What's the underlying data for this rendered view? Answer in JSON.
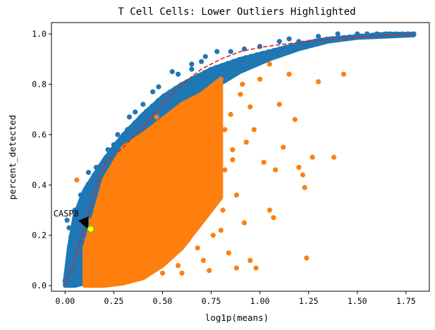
{
  "chart_data": {
    "type": "scatter",
    "title": "T Cell Cells: Lower Outliers Highlighted",
    "xlabel": "log1p(means)",
    "ylabel": "percent_detected",
    "xlim": [
      -0.07,
      1.87
    ],
    "ylim": [
      -0.022,
      1.045
    ],
    "xticks": [
      "0.00",
      "0.25",
      "0.50",
      "0.75",
      "1.00",
      "1.25",
      "1.50",
      "1.75"
    ],
    "yticks": [
      "0.0",
      "0.2",
      "0.4",
      "0.6",
      "0.8",
      "1.0"
    ],
    "grid": false,
    "legend": "none",
    "colors": {
      "all_genes": "#1f77b4",
      "lower_outliers": "#ff7f0e",
      "fit_curve": "#d62728",
      "highlight": "#ffff00",
      "highlight_edge": "#7ab800",
      "arrow": "#000000"
    },
    "series": [
      {
        "key": "all_genes",
        "marker": "dot",
        "envelope_x": [
          0.0,
          0.02,
          0.05,
          0.1,
          0.15,
          0.2,
          0.3,
          0.4,
          0.5,
          0.6,
          0.75,
          0.9,
          1.05,
          1.2,
          1.35,
          1.5,
          1.65,
          1.79
        ],
        "envelope_upper": [
          0.02,
          0.15,
          0.28,
          0.38,
          0.44,
          0.5,
          0.6,
          0.68,
          0.75,
          0.8,
          0.86,
          0.9,
          0.93,
          0.96,
          0.98,
          0.99,
          1.0,
          1.0
        ],
        "envelope_lower": [
          0.0,
          0.0,
          0.0,
          0.01,
          0.05,
          0.12,
          0.3,
          0.46,
          0.6,
          0.68,
          0.78,
          0.85,
          0.9,
          0.94,
          0.97,
          0.985,
          0.99,
          0.995
        ],
        "points": [
          [
            0.05,
            0.3
          ],
          [
            0.08,
            0.36
          ],
          [
            0.1,
            0.34
          ],
          [
            0.12,
            0.45
          ],
          [
            0.14,
            0.39
          ],
          [
            0.17,
            0.43
          ],
          [
            0.22,
            0.54
          ],
          [
            0.27,
            0.6
          ],
          [
            0.32,
            0.62
          ],
          [
            0.36,
            0.69
          ],
          [
            0.4,
            0.72
          ],
          [
            0.48,
            0.79
          ],
          [
            0.55,
            0.85
          ],
          [
            0.65,
            0.88
          ],
          [
            0.72,
            0.91
          ],
          [
            0.78,
            0.93
          ],
          [
            0.65,
            0.86
          ],
          [
            1.0,
            0.95
          ],
          [
            1.1,
            0.97
          ],
          [
            1.15,
            0.98
          ],
          [
            1.3,
            0.99
          ],
          [
            1.4,
            1.0
          ],
          [
            1.5,
            1.0
          ],
          [
            1.55,
            1.0
          ],
          [
            1.6,
            1.0
          ],
          [
            1.65,
            1.0
          ],
          [
            1.7,
            0.995
          ],
          [
            1.79,
            1.0
          ],
          [
            0.01,
            0.26
          ],
          [
            0.02,
            0.23
          ],
          [
            0.03,
            0.18
          ],
          [
            0.06,
            0.23
          ],
          [
            0.09,
            0.28
          ],
          [
            0.16,
            0.47
          ],
          [
            0.25,
            0.56
          ],
          [
            0.33,
            0.67
          ],
          [
            0.45,
            0.77
          ],
          [
            0.58,
            0.84
          ],
          [
            0.7,
            0.89
          ],
          [
            0.85,
            0.93
          ],
          [
            0.92,
            0.94
          ],
          [
            1.2,
            0.97
          ]
        ]
      },
      {
        "key": "lower_outliers",
        "marker": "dot",
        "envelope_x": [
          0.1,
          0.15,
          0.2,
          0.3,
          0.4,
          0.5,
          0.6,
          0.7,
          0.8
        ],
        "envelope_upper": [
          0.15,
          0.28,
          0.42,
          0.55,
          0.6,
          0.66,
          0.72,
          0.76,
          0.82
        ],
        "envelope_lower": [
          0.0,
          0.0,
          0.0,
          0.01,
          0.03,
          0.08,
          0.15,
          0.25,
          0.35
        ],
        "points": [
          [
            0.18,
            0.19
          ],
          [
            0.2,
            0.1
          ],
          [
            0.22,
            0.04
          ],
          [
            0.25,
            0.42
          ],
          [
            0.28,
            0.31
          ],
          [
            0.33,
            0.48
          ],
          [
            0.38,
            0.12
          ],
          [
            0.42,
            0.55
          ],
          [
            0.45,
            0.62
          ],
          [
            0.47,
            0.3
          ],
          [
            0.52,
            0.2
          ],
          [
            0.55,
            0.45
          ],
          [
            0.58,
            0.08
          ],
          [
            0.6,
            0.37
          ],
          [
            0.62,
            0.63
          ],
          [
            0.64,
            0.27
          ],
          [
            0.66,
            0.52
          ],
          [
            0.68,
            0.15
          ],
          [
            0.7,
            0.72
          ],
          [
            0.72,
            0.41
          ],
          [
            0.74,
            0.06
          ],
          [
            0.76,
            0.33
          ],
          [
            0.78,
            0.6
          ],
          [
            0.8,
            0.22
          ],
          [
            0.82,
            0.46
          ],
          [
            0.84,
            0.13
          ],
          [
            0.85,
            0.68
          ],
          [
            0.86,
            0.5
          ],
          [
            0.88,
            0.36
          ],
          [
            0.9,
            0.76
          ],
          [
            0.92,
            0.25
          ],
          [
            0.95,
            0.71
          ],
          [
            0.95,
            0.1
          ],
          [
            0.97,
            0.62
          ],
          [
            0.98,
            0.07
          ],
          [
            1.0,
            0.82
          ],
          [
            1.02,
            0.49
          ],
          [
            1.05,
            0.88
          ],
          [
            1.08,
            0.46
          ],
          [
            1.1,
            0.72
          ],
          [
            1.12,
            0.55
          ],
          [
            1.15,
            0.84
          ],
          [
            1.18,
            0.66
          ],
          [
            1.2,
            0.47
          ],
          [
            1.22,
            0.44
          ],
          [
            1.23,
            0.39
          ],
          [
            1.24,
            0.11
          ],
          [
            1.27,
            0.51
          ],
          [
            1.3,
            0.81
          ],
          [
            1.38,
            0.51
          ],
          [
            1.43,
            0.84
          ],
          [
            0.93,
            0.57
          ],
          [
            1.05,
            0.3
          ],
          [
            1.07,
            0.27
          ],
          [
            0.88,
            0.07
          ],
          [
            0.76,
            0.2
          ],
          [
            0.82,
            0.62
          ],
          [
            0.86,
            0.54
          ],
          [
            0.91,
            0.8
          ],
          [
            0.12,
            0.26
          ],
          [
            0.06,
            0.42
          ],
          [
            0.3,
            0.36
          ],
          [
            0.4,
            0.25
          ],
          [
            0.5,
            0.05
          ],
          [
            0.56,
            0.29
          ],
          [
            0.63,
            0.18
          ],
          [
            0.69,
            0.38
          ],
          [
            0.73,
            0.55
          ],
          [
            0.57,
            0.58
          ],
          [
            0.67,
            0.66
          ],
          [
            0.47,
            0.67
          ],
          [
            0.44,
            0.08
          ],
          [
            0.36,
            0.22
          ],
          [
            0.54,
            0.14
          ],
          [
            0.6,
            0.05
          ],
          [
            0.71,
            0.1
          ],
          [
            0.79,
            0.42
          ],
          [
            0.81,
            0.3
          ]
        ]
      }
    ],
    "fit_curve": {
      "x": [
        0.0,
        0.05,
        0.1,
        0.15,
        0.2,
        0.3,
        0.4,
        0.5,
        0.6,
        0.7,
        0.8,
        0.9,
        1.0,
        1.1,
        1.2,
        1.3,
        1.4,
        1.5,
        1.6,
        1.7,
        1.79
      ],
      "y": [
        0.0,
        0.1,
        0.24,
        0.37,
        0.48,
        0.55,
        0.63,
        0.72,
        0.8,
        0.86,
        0.9,
        0.93,
        0.946,
        0.957,
        0.966,
        0.974,
        0.981,
        0.987,
        0.992,
        0.996,
        1.0
      ]
    },
    "highlight": {
      "label": "CASP8",
      "x": 0.132,
      "y": 0.225,
      "label_x": -0.06,
      "label_y": 0.275
    }
  }
}
